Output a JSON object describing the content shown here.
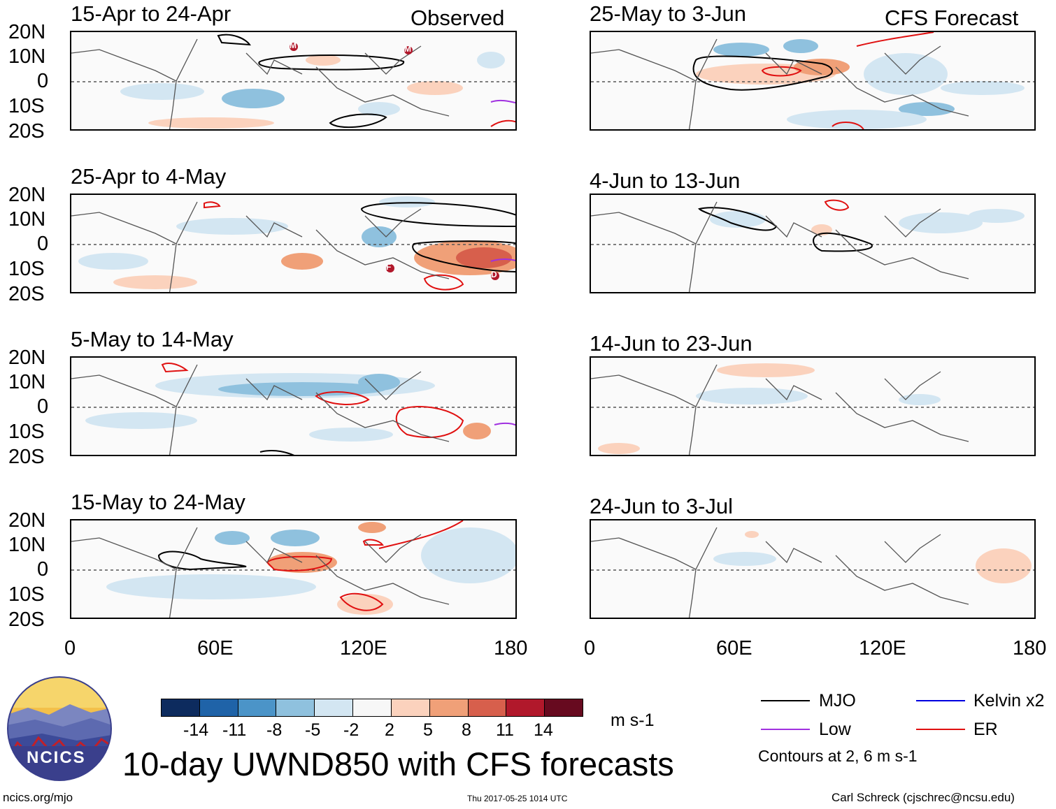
{
  "header": {
    "left": "Observed",
    "right": "CFS Forecast"
  },
  "panels": {
    "left": [
      "15-Apr to 24-Apr",
      "25-Apr to 4-May",
      "5-May to 14-May",
      "15-May to 24-May"
    ],
    "right": [
      "25-May to 3-Jun",
      "4-Jun to 13-Jun",
      "14-Jun to 23-Jun",
      "24-Jun to 3-Jul"
    ]
  },
  "lat_labels": [
    "20N",
    "10N",
    "0",
    "10S",
    "20S"
  ],
  "lon_labels": [
    "0",
    "60E",
    "120E",
    "180"
  ],
  "storm_markers": [
    {
      "label": "M"
    },
    {
      "label": "M"
    },
    {
      "label": "F"
    },
    {
      "label": "D"
    }
  ],
  "colorbar": {
    "ticks": [
      "-14",
      "-11",
      "-8",
      "-5",
      "-2",
      "2",
      "5",
      "8",
      "11",
      "14"
    ],
    "colors": [
      "#0d2b5e",
      "#1f63a8",
      "#4b94c8",
      "#8fc1de",
      "#d3e6f2",
      "#f7f7f7",
      "#fbd2bd",
      "#f0a078",
      "#d75f4c",
      "#b1182b",
      "#670a1f"
    ],
    "units": "m s-1"
  },
  "legend": {
    "items": [
      {
        "label": "MJO",
        "color": "#000000"
      },
      {
        "label": "Kelvin x2",
        "color": "#0000e0"
      },
      {
        "label": "Low",
        "color": "#a030e0"
      },
      {
        "label": "ER",
        "color": "#e01010"
      }
    ],
    "contours": "Contours at 2, 6 m s-1"
  },
  "title": "10-day UWND850 with CFS forecasts",
  "logo": {
    "text": "NCICS"
  },
  "footer": {
    "url": "ncics.org/mjo",
    "timestamp": "Thu 2017-05-25 1014 UTC",
    "author": "Carl Schreck (cjschrec@ncsu.edu)"
  }
}
